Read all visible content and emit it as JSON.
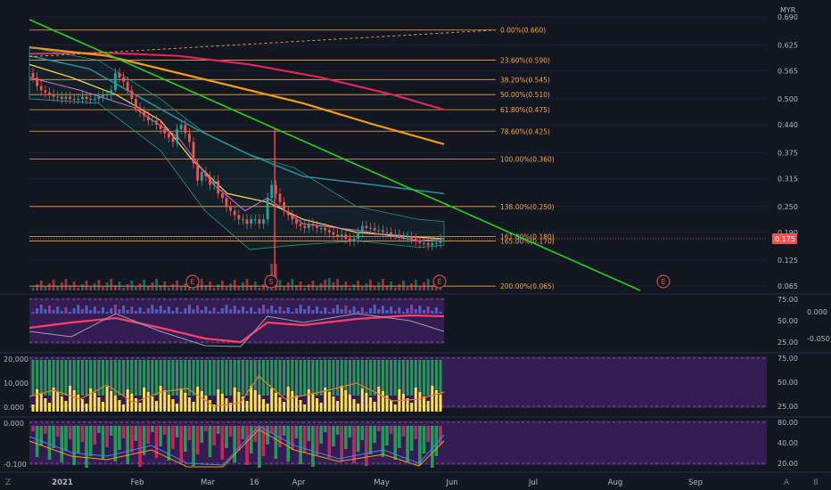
{
  "chart_data": [
    {
      "type": "candlestick",
      "currency": "MYR",
      "price_axis_ticks": [
        "0.690",
        "0.625",
        "0.565",
        "0.500",
        "0.440",
        "0.375",
        "0.315",
        "0.250",
        "0.190",
        "0.125",
        "0.065"
      ],
      "last_price_label": "0.175",
      "x_axis_labels": [
        "2021",
        "Feb",
        "Mar",
        "16",
        "Apr",
        "May",
        "Jun",
        "Jul",
        "Aug",
        "Sep"
      ],
      "fib_levels": [
        {
          "label": "0.00%(0.660)",
          "value": 0.66,
          "color": "#f7a541"
        },
        {
          "label": "23.60%(0.590)",
          "value": 0.59,
          "color": "#f7a541"
        },
        {
          "label": "38.20%(0.545)",
          "value": 0.545,
          "color": "#f7a541"
        },
        {
          "label": "50.00%(0.510)",
          "value": 0.51,
          "color": "#f7a541"
        },
        {
          "label": "61.80%(0.475)",
          "value": 0.475,
          "color": "#f7a541"
        },
        {
          "label": "78.60%(0.425)",
          "value": 0.425,
          "color": "#f7a541"
        },
        {
          "label": "100.00%(0.360)",
          "value": 0.36,
          "color": "#f7a541"
        },
        {
          "label": "138.00%(0.250)",
          "value": 0.25,
          "color": "#f7a541"
        },
        {
          "label": "161.80%(0.180)",
          "value": 0.18,
          "color": "#f7a541"
        },
        {
          "label": "165.00%(0.170)",
          "value": 0.17,
          "color": "#f7a541"
        },
        {
          "label": "200.00%(0.065)",
          "value": 0.065,
          "color": "#f7a541"
        }
      ],
      "event_markers": [
        "E",
        "S",
        "E",
        "E"
      ],
      "trendline_color": "#22d41c",
      "up_color": "#26a69a",
      "down_color": "#ef5350",
      "closes": [
        0.55,
        0.53,
        0.52,
        0.515,
        0.51,
        0.505,
        0.505,
        0.5,
        0.505,
        0.5,
        0.5,
        0.5,
        0.505,
        0.5,
        0.5,
        0.5,
        0.505,
        0.51,
        0.51,
        0.52,
        0.56,
        0.55,
        0.54,
        0.52,
        0.5,
        0.48,
        0.47,
        0.46,
        0.45,
        0.45,
        0.44,
        0.43,
        0.42,
        0.41,
        0.4,
        0.43,
        0.44,
        0.42,
        0.4,
        0.35,
        0.31,
        0.33,
        0.32,
        0.3,
        0.31,
        0.28,
        0.27,
        0.25,
        0.24,
        0.23,
        0.22,
        0.22,
        0.21,
        0.22,
        0.22,
        0.21,
        0.22,
        0.27,
        0.3,
        0.28,
        0.26,
        0.24,
        0.23,
        0.22,
        0.21,
        0.205,
        0.2,
        0.21,
        0.205,
        0.2,
        0.2,
        0.195,
        0.19,
        0.185,
        0.18,
        0.185,
        0.175,
        0.17,
        0.175,
        0.19,
        0.205,
        0.2,
        0.2,
        0.195,
        0.195,
        0.19,
        0.19,
        0.185,
        0.185,
        0.18,
        0.18,
        0.18,
        0.175,
        0.17,
        0.165,
        0.165,
        0.16,
        0.165,
        0.165,
        0.175
      ]
    },
    {
      "type": "line",
      "panel": "oscillator-1",
      "y_axis_ticks": [
        "75.00",
        "50.00",
        "25.00"
      ],
      "secondary_axis_ticks": [
        "0.000",
        "-0.050"
      ],
      "series": []
    },
    {
      "type": "bar",
      "panel": "volume-oscillator",
      "y_axis_ticks_left": [
        "20,000",
        "10,000",
        "0.000"
      ],
      "y_axis_ticks_right": [
        "75.00",
        "50.00",
        "25.00"
      ],
      "series": []
    },
    {
      "type": "bar",
      "panel": "oscillator-3",
      "y_axis_ticks_left": [
        "0.000",
        "-0.100"
      ],
      "y_axis_ticks_right": [
        "80.00",
        "40.00",
        "20.00"
      ],
      "series": []
    }
  ],
  "corner": {
    "left": "Z",
    "right_a": "A",
    "right_b": "8"
  },
  "colors": {
    "background": "#131722",
    "panel_fill": "#3b1f5c",
    "fib": "#f7a541",
    "ma_red": "#e0245e",
    "ma_orange": "#f39c12",
    "ma_teal": "#2b8a9a",
    "ma_yellow": "#ffd54f"
  }
}
